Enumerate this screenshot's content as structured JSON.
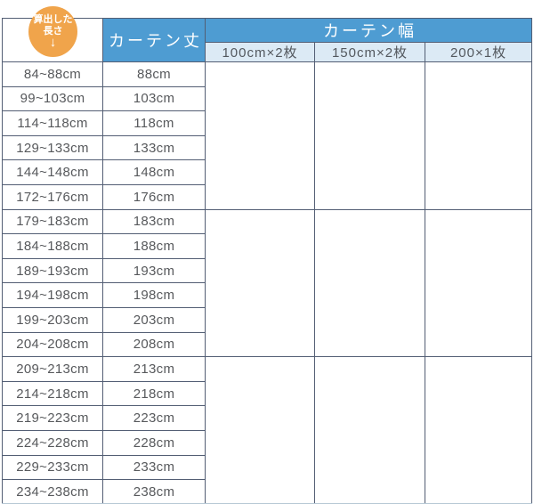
{
  "chart_data": {
    "type": "table",
    "badge": {
      "line1": "算出した",
      "line2": "長さ",
      "arrow": "↓"
    },
    "headers": {
      "length_col": "カーテン丈",
      "width_group": "カーテン幅",
      "width_cols": [
        "100cm×2枚",
        "150cm×2枚",
        "200×1枚"
      ]
    },
    "rows": [
      {
        "range": "84~88cm",
        "length": "88cm"
      },
      {
        "range": "99~103cm",
        "length": "103cm"
      },
      {
        "range": "114~118cm",
        "length": "118cm"
      },
      {
        "range": "129~133cm",
        "length": "133cm"
      },
      {
        "range": "144~148cm",
        "length": "148cm"
      },
      {
        "range": "172~176cm",
        "length": "176cm"
      },
      {
        "range": "179~183cm",
        "length": "183cm"
      },
      {
        "range": "184~188cm",
        "length": "188cm"
      },
      {
        "range": "189~193cm",
        "length": "193cm"
      },
      {
        "range": "194~198cm",
        "length": "198cm"
      },
      {
        "range": "199~203cm",
        "length": "203cm"
      },
      {
        "range": "204~208cm",
        "length": "208cm"
      },
      {
        "range": "209~213cm",
        "length": "213cm"
      },
      {
        "range": "214~218cm",
        "length": "218cm"
      },
      {
        "range": "219~223cm",
        "length": "223cm"
      },
      {
        "range": "224~228cm",
        "length": "228cm"
      },
      {
        "range": "229~233cm",
        "length": "233cm"
      },
      {
        "range": "234~238cm",
        "length": "238cm"
      }
    ],
    "row_group_size": 6,
    "layout": {
      "grid": true,
      "width_columns_empty": true,
      "legend_position": "none"
    },
    "colors": {
      "header_blue": "#4E9CD2",
      "subheader_light_blue": "#DCEAF5",
      "badge_orange": "#F0A44B",
      "border_dark": "#535E74",
      "border_bottom_light": "#B6C8D5",
      "body_text": "#57595C",
      "header_text": "#FFFFFF"
    }
  }
}
